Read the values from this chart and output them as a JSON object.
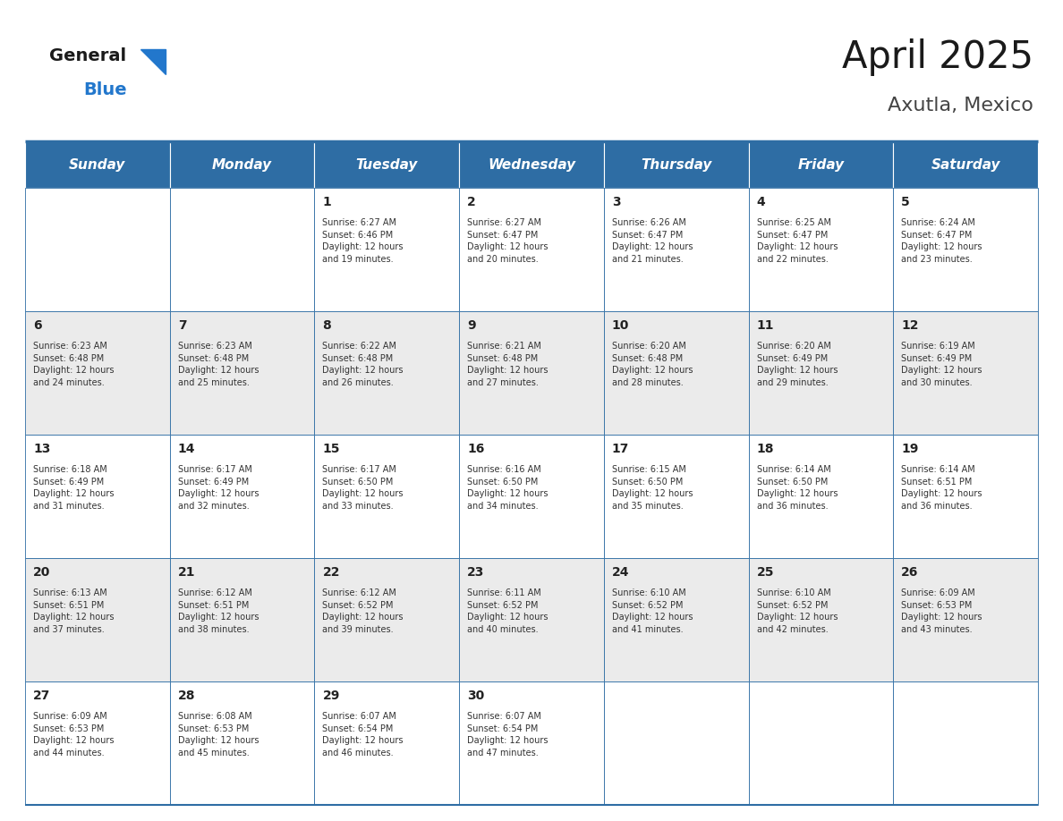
{
  "title": "April 2025",
  "subtitle": "Axutla, Mexico",
  "header_bg_color": "#2E6DA4",
  "header_text_color": "#FFFFFF",
  "cell_bg_even": "#EBEBEB",
  "cell_bg_odd": "#FFFFFF",
  "cell_text_color": "#333333",
  "day_number_color": "#222222",
  "border_color": "#2E6DA4",
  "logo_general_color": "#1a1a1a",
  "logo_blue_color": "#2277CC",
  "logo_triangle_color": "#2277CC",
  "days_of_week": [
    "Sunday",
    "Monday",
    "Tuesday",
    "Wednesday",
    "Thursday",
    "Friday",
    "Saturday"
  ],
  "calendar_data": [
    [
      {
        "day": "",
        "info": ""
      },
      {
        "day": "",
        "info": ""
      },
      {
        "day": "1",
        "info": "Sunrise: 6:27 AM\nSunset: 6:46 PM\nDaylight: 12 hours\nand 19 minutes."
      },
      {
        "day": "2",
        "info": "Sunrise: 6:27 AM\nSunset: 6:47 PM\nDaylight: 12 hours\nand 20 minutes."
      },
      {
        "day": "3",
        "info": "Sunrise: 6:26 AM\nSunset: 6:47 PM\nDaylight: 12 hours\nand 21 minutes."
      },
      {
        "day": "4",
        "info": "Sunrise: 6:25 AM\nSunset: 6:47 PM\nDaylight: 12 hours\nand 22 minutes."
      },
      {
        "day": "5",
        "info": "Sunrise: 6:24 AM\nSunset: 6:47 PM\nDaylight: 12 hours\nand 23 minutes."
      }
    ],
    [
      {
        "day": "6",
        "info": "Sunrise: 6:23 AM\nSunset: 6:48 PM\nDaylight: 12 hours\nand 24 minutes."
      },
      {
        "day": "7",
        "info": "Sunrise: 6:23 AM\nSunset: 6:48 PM\nDaylight: 12 hours\nand 25 minutes."
      },
      {
        "day": "8",
        "info": "Sunrise: 6:22 AM\nSunset: 6:48 PM\nDaylight: 12 hours\nand 26 minutes."
      },
      {
        "day": "9",
        "info": "Sunrise: 6:21 AM\nSunset: 6:48 PM\nDaylight: 12 hours\nand 27 minutes."
      },
      {
        "day": "10",
        "info": "Sunrise: 6:20 AM\nSunset: 6:48 PM\nDaylight: 12 hours\nand 28 minutes."
      },
      {
        "day": "11",
        "info": "Sunrise: 6:20 AM\nSunset: 6:49 PM\nDaylight: 12 hours\nand 29 minutes."
      },
      {
        "day": "12",
        "info": "Sunrise: 6:19 AM\nSunset: 6:49 PM\nDaylight: 12 hours\nand 30 minutes."
      }
    ],
    [
      {
        "day": "13",
        "info": "Sunrise: 6:18 AM\nSunset: 6:49 PM\nDaylight: 12 hours\nand 31 minutes."
      },
      {
        "day": "14",
        "info": "Sunrise: 6:17 AM\nSunset: 6:49 PM\nDaylight: 12 hours\nand 32 minutes."
      },
      {
        "day": "15",
        "info": "Sunrise: 6:17 AM\nSunset: 6:50 PM\nDaylight: 12 hours\nand 33 minutes."
      },
      {
        "day": "16",
        "info": "Sunrise: 6:16 AM\nSunset: 6:50 PM\nDaylight: 12 hours\nand 34 minutes."
      },
      {
        "day": "17",
        "info": "Sunrise: 6:15 AM\nSunset: 6:50 PM\nDaylight: 12 hours\nand 35 minutes."
      },
      {
        "day": "18",
        "info": "Sunrise: 6:14 AM\nSunset: 6:50 PM\nDaylight: 12 hours\nand 36 minutes."
      },
      {
        "day": "19",
        "info": "Sunrise: 6:14 AM\nSunset: 6:51 PM\nDaylight: 12 hours\nand 36 minutes."
      }
    ],
    [
      {
        "day": "20",
        "info": "Sunrise: 6:13 AM\nSunset: 6:51 PM\nDaylight: 12 hours\nand 37 minutes."
      },
      {
        "day": "21",
        "info": "Sunrise: 6:12 AM\nSunset: 6:51 PM\nDaylight: 12 hours\nand 38 minutes."
      },
      {
        "day": "22",
        "info": "Sunrise: 6:12 AM\nSunset: 6:52 PM\nDaylight: 12 hours\nand 39 minutes."
      },
      {
        "day": "23",
        "info": "Sunrise: 6:11 AM\nSunset: 6:52 PM\nDaylight: 12 hours\nand 40 minutes."
      },
      {
        "day": "24",
        "info": "Sunrise: 6:10 AM\nSunset: 6:52 PM\nDaylight: 12 hours\nand 41 minutes."
      },
      {
        "day": "25",
        "info": "Sunrise: 6:10 AM\nSunset: 6:52 PM\nDaylight: 12 hours\nand 42 minutes."
      },
      {
        "day": "26",
        "info": "Sunrise: 6:09 AM\nSunset: 6:53 PM\nDaylight: 12 hours\nand 43 minutes."
      }
    ],
    [
      {
        "day": "27",
        "info": "Sunrise: 6:09 AM\nSunset: 6:53 PM\nDaylight: 12 hours\nand 44 minutes."
      },
      {
        "day": "28",
        "info": "Sunrise: 6:08 AM\nSunset: 6:53 PM\nDaylight: 12 hours\nand 45 minutes."
      },
      {
        "day": "29",
        "info": "Sunrise: 6:07 AM\nSunset: 6:54 PM\nDaylight: 12 hours\nand 46 minutes."
      },
      {
        "day": "30",
        "info": "Sunrise: 6:07 AM\nSunset: 6:54 PM\nDaylight: 12 hours\nand 47 minutes."
      },
      {
        "day": "",
        "info": ""
      },
      {
        "day": "",
        "info": ""
      },
      {
        "day": "",
        "info": ""
      }
    ]
  ]
}
